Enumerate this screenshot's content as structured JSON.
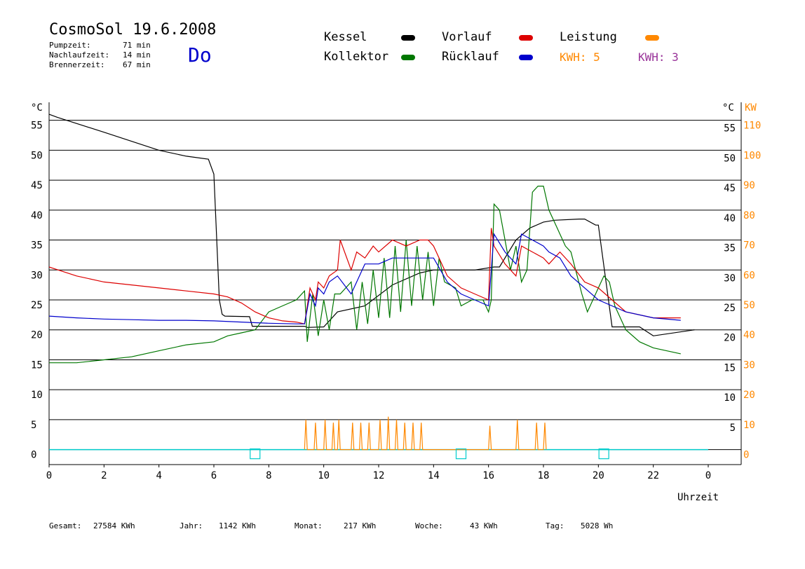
{
  "header": {
    "title": "CosmoSol 19.6.2008",
    "day": "Do",
    "stats": [
      {
        "label": "Pumpzeit:",
        "value": "71 min"
      },
      {
        "label": "Nachlaufzeit:",
        "value": "14 min"
      },
      {
        "label": "Brennerzeit:",
        "value": "67 min"
      }
    ]
  },
  "legend": {
    "kessel": "Kessel",
    "kollektor": "Kollektor",
    "vorlauf": "Vorlauf",
    "ruecklauf": "Rücklauf",
    "leistung": "Leistung",
    "kwh1": "KWH: 5",
    "kwh2": "KWH: 3"
  },
  "colors": {
    "kessel": "#000000",
    "kollektor": "#007700",
    "vorlauf": "#dd0000",
    "ruecklauf": "#0000cc",
    "leistung": "#ff8800",
    "kwh2": "#993399",
    "baseline": "#00cccc"
  },
  "footer": [
    {
      "label": "Gesamt:",
      "value": "27584 KWh"
    },
    {
      "label": "Jahr:",
      "value": "1142 KWh"
    },
    {
      "label": "Monat:",
      "value": "217 KWh"
    },
    {
      "label": "Woche:",
      "value": "43 KWh"
    },
    {
      "label": "Tag:",
      "value": "5028 Wh"
    }
  ],
  "chart_data": {
    "type": "line",
    "xlabel": "Uhrzeit",
    "x_ticks": [
      "0",
      "2",
      "4",
      "6",
      "8",
      "10",
      "12",
      "14",
      "16",
      "18",
      "20",
      "22",
      "0"
    ],
    "xlim": [
      0,
      24
    ],
    "ylabel_left": "°C",
    "ylabel_right_temp": "°C",
    "ylabel_right_power": "KW",
    "ylim": [
      -2.5,
      58
    ],
    "y_ticks_left": [
      "0",
      "5",
      "10",
      "15",
      "20",
      "25",
      "30",
      "35",
      "40",
      "45",
      "50",
      "55"
    ],
    "y_ticks_right_temp": [
      "5",
      "10",
      "15",
      "20",
      "25",
      "30",
      "35",
      "40",
      "45",
      "50",
      "55"
    ],
    "y_ticks_right_power": [
      "0",
      "10",
      "20",
      "30",
      "40",
      "50",
      "60",
      "70",
      "80",
      "90",
      "100",
      "110"
    ],
    "grid": true,
    "markers_x": [
      7.5,
      15.0,
      20.2
    ],
    "series": [
      {
        "name": "Kessel",
        "x": [
          0,
          0.3,
          2,
          4,
          5,
          5.8,
          6.0,
          6.2,
          6.3,
          6.4,
          7.3,
          7.4,
          9.3,
          9.4,
          10.0,
          10.5,
          11.5,
          12.5,
          13.5,
          14.0,
          15.5,
          16.2,
          16.4,
          17.0,
          17.5,
          18.0,
          18.4,
          19.3,
          19.5,
          19.9,
          20.0,
          20.5,
          21.0,
          21.5,
          22.0,
          23.5
        ],
        "y": [
          56,
          55.5,
          53,
          50,
          49,
          48.5,
          46,
          25,
          22.6,
          22.3,
          22.2,
          20.6,
          20.6,
          20.4,
          20.5,
          23,
          24,
          27.5,
          29.5,
          30,
          30,
          30.5,
          30.5,
          35,
          37,
          38,
          38.3,
          38.5,
          38.5,
          37.5,
          37.5,
          20.5,
          20.5,
          20.5,
          19,
          20
        ]
      },
      {
        "name": "Kollektor",
        "x": [
          0,
          1,
          2,
          3,
          4,
          5,
          6,
          6.5,
          7,
          7.5,
          8,
          8.5,
          9,
          9.3,
          9.4,
          9.6,
          9.8,
          10.0,
          10.2,
          10.4,
          10.6,
          11,
          11.2,
          11.4,
          11.6,
          11.8,
          12.0,
          12.2,
          12.4,
          12.6,
          12.8,
          13.0,
          13.2,
          13.4,
          13.6,
          13.8,
          14.0,
          14.2,
          14.4,
          14.8,
          15.0,
          15.4,
          15.8,
          16.0,
          16.1,
          16.2,
          16.4,
          16.6,
          16.8,
          17.0,
          17.2,
          17.4,
          17.6,
          17.8,
          18.0,
          18.2,
          18.4,
          18.6,
          18.8,
          19.0,
          19.4,
          19.6,
          19.8,
          20.0,
          20.2,
          20.4,
          20.6,
          21.0,
          21.5,
          22.0,
          23.0
        ],
        "y": [
          14.5,
          14.5,
          15,
          15.5,
          16.5,
          17.5,
          18,
          19,
          19.5,
          20,
          23,
          24,
          25,
          26.5,
          18,
          26,
          19,
          25,
          20,
          26,
          26,
          28,
          20,
          28,
          21,
          30,
          22,
          32,
          22,
          34,
          23,
          35,
          24,
          34,
          25,
          33,
          24,
          32,
          28,
          27,
          24,
          25,
          25,
          23,
          25,
          41,
          40,
          35,
          30,
          34,
          28,
          30,
          43,
          44,
          44,
          40,
          38,
          36,
          34,
          33,
          26,
          23,
          25,
          27,
          29,
          28,
          24,
          20,
          18,
          17,
          16
        ]
      },
      {
        "name": "Vorlauf",
        "x": [
          0,
          1,
          2,
          3,
          4,
          5,
          6,
          6.5,
          7,
          7.5,
          8,
          8.5,
          9,
          9.3,
          9.5,
          9.7,
          9.8,
          10.0,
          10.2,
          10.5,
          10.6,
          11.0,
          11.2,
          11.5,
          11.8,
          12.0,
          12.5,
          13.0,
          13.5,
          13.8,
          14.0,
          14.5,
          15.0,
          15.5,
          16.0,
          16.1,
          16.2,
          16.6,
          17.0,
          17.2,
          17.6,
          18.0,
          18.2,
          18.6,
          19.0,
          19.5,
          20.0,
          20.5,
          21.0,
          22.0,
          23.0
        ],
        "y": [
          30.5,
          29,
          28,
          27.5,
          27,
          26.5,
          26,
          25.5,
          24.5,
          23,
          22,
          21.5,
          21.3,
          21,
          27,
          25,
          28,
          27,
          29,
          30,
          35,
          30,
          33,
          32,
          34,
          33,
          35,
          34,
          35,
          35,
          34,
          29,
          27,
          26,
          25,
          37,
          34,
          31,
          29,
          34,
          33,
          32,
          31,
          33,
          31,
          28,
          27,
          25,
          23,
          22,
          22
        ]
      },
      {
        "name": "Rücklauf",
        "x": [
          0,
          1,
          2,
          3,
          4,
          5,
          6,
          7,
          8,
          9,
          9.3,
          9.5,
          9.7,
          9.8,
          10.0,
          10.2,
          10.5,
          11,
          11.5,
          12,
          12.5,
          13,
          13.5,
          14,
          14.5,
          15,
          15.5,
          16,
          16.2,
          16.6,
          17.0,
          17.2,
          17.6,
          18.0,
          18.2,
          18.6,
          19.0,
          19.5,
          20,
          21,
          22,
          23
        ],
        "y": [
          22.3,
          22,
          21.8,
          21.7,
          21.6,
          21.6,
          21.5,
          21.3,
          21.1,
          21,
          21,
          26,
          24,
          27,
          26,
          28,
          29,
          26,
          31,
          31,
          32,
          32,
          32,
          32,
          28,
          26,
          25,
          24,
          36,
          33,
          31,
          36,
          35,
          34,
          33,
          32,
          29,
          27,
          25,
          23,
          22,
          21.6
        ]
      },
      {
        "name": "Leistung",
        "x": [
          9.3,
          9.35,
          9.4,
          9.65,
          9.7,
          9.75,
          10.0,
          10.05,
          10.1,
          10.3,
          10.35,
          10.4,
          10.5,
          10.55,
          10.6,
          11.0,
          11.05,
          11.1,
          11.3,
          11.35,
          11.4,
          11.6,
          11.65,
          11.7,
          12.0,
          12.05,
          12.1,
          12.3,
          12.35,
          12.4,
          12.6,
          12.65,
          12.7,
          12.9,
          12.95,
          13.0,
          13.2,
          13.25,
          13.3,
          13.5,
          13.55,
          13.6,
          16.0,
          16.05,
          16.1,
          17.0,
          17.05,
          17.1,
          17.7,
          17.75,
          17.8,
          18.0,
          18.05,
          18.1
        ],
        "y": [
          0,
          5,
          0,
          0,
          4.5,
          0,
          0,
          5,
          0,
          0,
          4.5,
          0,
          0,
          5,
          0,
          0,
          4.5,
          0,
          0,
          4.5,
          0,
          0,
          4.5,
          0,
          0,
          5,
          0,
          0,
          5.5,
          0,
          0,
          5,
          0,
          0,
          4.5,
          0,
          0,
          4.5,
          0,
          0,
          4.5,
          0,
          0,
          4,
          0,
          0,
          5,
          0,
          0,
          4.5,
          0,
          0,
          4.5,
          0
        ]
      }
    ]
  }
}
